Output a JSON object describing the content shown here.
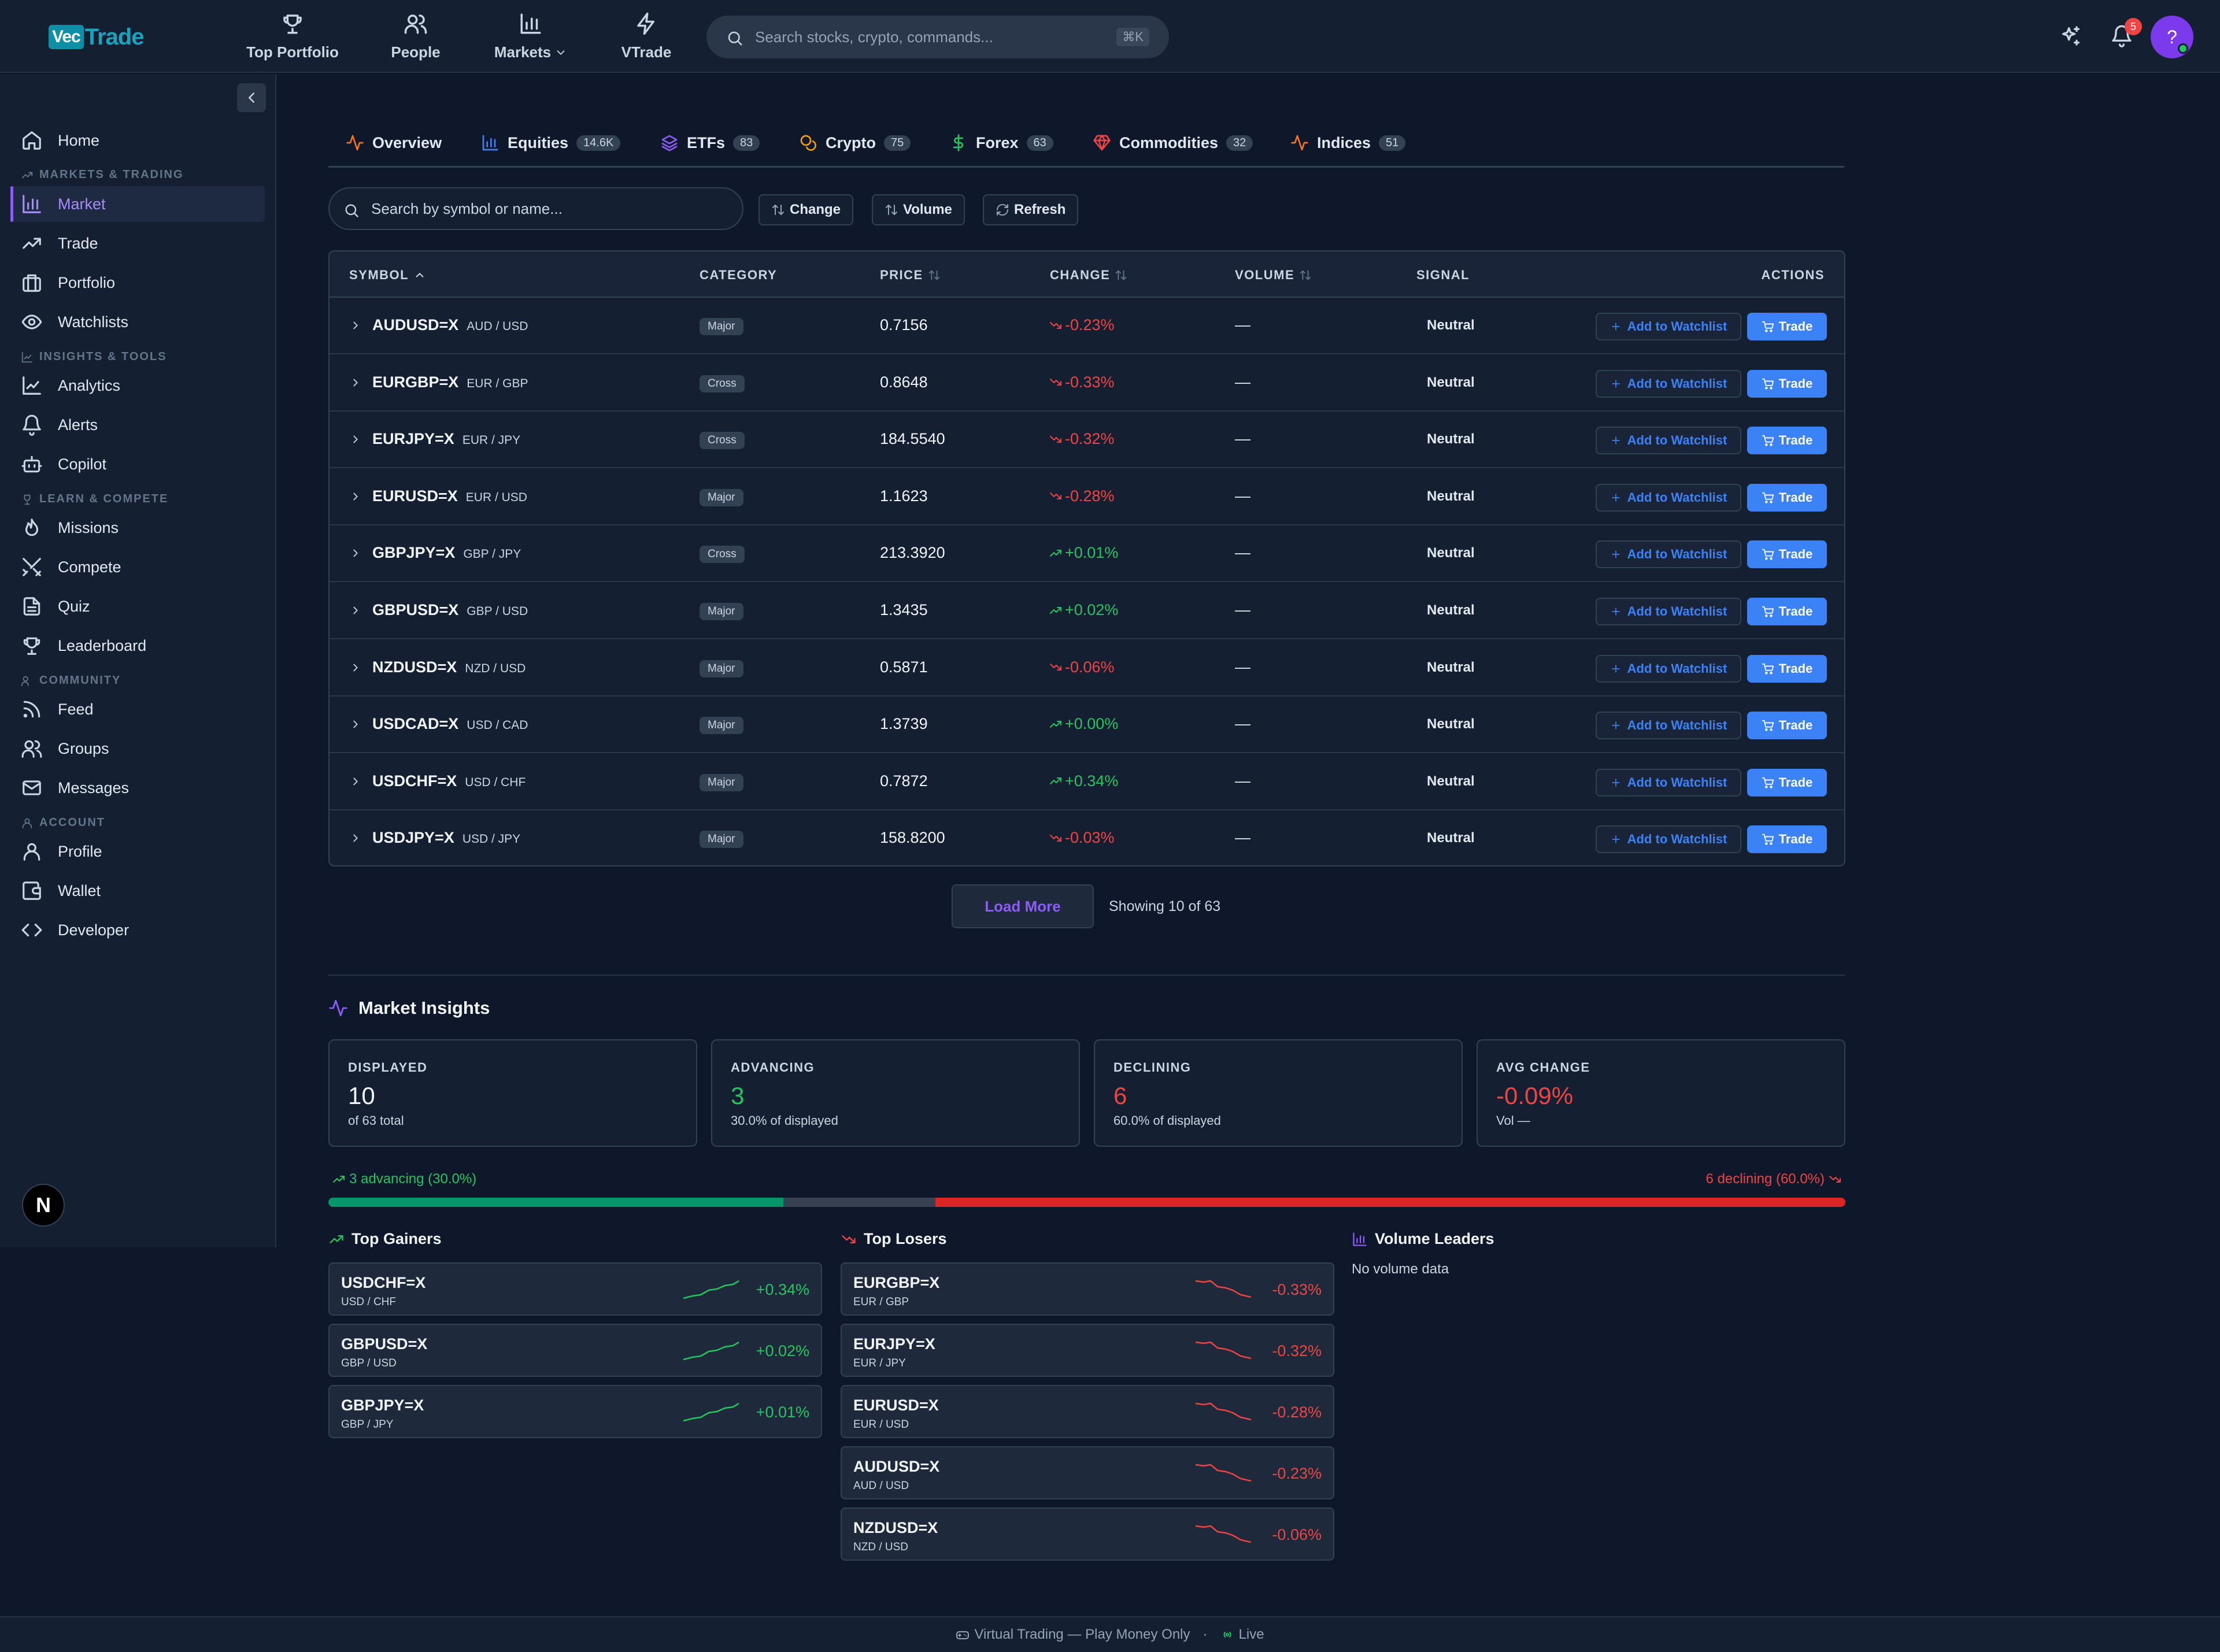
{
  "app": {
    "logo_vec": "Vec",
    "logo_trade": "Trade"
  },
  "topnav": [
    {
      "label": "Top Portfolio",
      "icon": "trophy-icon"
    },
    {
      "label": "People",
      "icon": "users-icon"
    },
    {
      "label": "Markets",
      "icon": "bar-chart-icon"
    },
    {
      "label": "VTrade",
      "icon": "lightning-icon"
    }
  ],
  "search": {
    "placeholder": "Search stocks, crypto, commands...",
    "shortcut": "⌘K"
  },
  "notifications": {
    "count": "5"
  },
  "user": {
    "avatar_label": "?"
  },
  "sidebar": {
    "home": "Home",
    "sec_markets": "MARKETS & TRADING",
    "market": "Market",
    "trade": "Trade",
    "portfolio": "Portfolio",
    "watchlists": "Watchlists",
    "sec_insights": "INSIGHTS & TOOLS",
    "analytics": "Analytics",
    "alerts": "Alerts",
    "copilot": "Copilot",
    "sec_learn": "LEARN & COMPETE",
    "missions": "Missions",
    "compete": "Compete",
    "quiz": "Quiz",
    "leaderboard": "Leaderboard",
    "sec_community": "COMMUNITY",
    "feed": "Feed",
    "groups": "Groups",
    "messages": "Messages",
    "sec_account": "ACCOUNT",
    "profile": "Profile",
    "wallet": "Wallet",
    "developer": "Developer",
    "badge": "N"
  },
  "tabs": [
    {
      "label": "Overview",
      "count": ""
    },
    {
      "label": "Equities",
      "count": "14.6K"
    },
    {
      "label": "ETFs",
      "count": "83"
    },
    {
      "label": "Crypto",
      "count": "75"
    },
    {
      "label": "Forex",
      "count": "63"
    },
    {
      "label": "Commodities",
      "count": "32"
    },
    {
      "label": "Indices",
      "count": "51"
    }
  ],
  "filter": {
    "placeholder": "Search by symbol or name...",
    "change": "Change",
    "volume": "Volume",
    "refresh": "Refresh"
  },
  "table": {
    "headers": {
      "symbol": "SYMBOL",
      "category": "CATEGORY",
      "price": "PRICE",
      "change": "CHANGE",
      "volume": "VOLUME",
      "signal": "SIGNAL",
      "actions": "ACTIONS"
    },
    "watch_label": "Add to Watchlist",
    "trade_label": "Trade",
    "rows": [
      {
        "symbol": "AUDUSD=X",
        "pair": "AUD / USD",
        "category": "Major",
        "price": "0.7156",
        "change": "-0.23%",
        "dir": "down",
        "volume": "—",
        "signal": "Neutral"
      },
      {
        "symbol": "EURGBP=X",
        "pair": "EUR / GBP",
        "category": "Cross",
        "price": "0.8648",
        "change": "-0.33%",
        "dir": "down",
        "volume": "—",
        "signal": "Neutral"
      },
      {
        "symbol": "EURJPY=X",
        "pair": "EUR / JPY",
        "category": "Cross",
        "price": "184.5540",
        "change": "-0.32%",
        "dir": "down",
        "volume": "—",
        "signal": "Neutral"
      },
      {
        "symbol": "EURUSD=X",
        "pair": "EUR / USD",
        "category": "Major",
        "price": "1.1623",
        "change": "-0.28%",
        "dir": "down",
        "volume": "—",
        "signal": "Neutral"
      },
      {
        "symbol": "GBPJPY=X",
        "pair": "GBP / JPY",
        "category": "Cross",
        "price": "213.3920",
        "change": "+0.01%",
        "dir": "up",
        "volume": "—",
        "signal": "Neutral"
      },
      {
        "symbol": "GBPUSD=X",
        "pair": "GBP / USD",
        "category": "Major",
        "price": "1.3435",
        "change": "+0.02%",
        "dir": "up",
        "volume": "—",
        "signal": "Neutral"
      },
      {
        "symbol": "NZDUSD=X",
        "pair": "NZD / USD",
        "category": "Major",
        "price": "0.5871",
        "change": "-0.06%",
        "dir": "down",
        "volume": "—",
        "signal": "Neutral"
      },
      {
        "symbol": "USDCAD=X",
        "pair": "USD / CAD",
        "category": "Major",
        "price": "1.3739",
        "change": "+0.00%",
        "dir": "up",
        "volume": "—",
        "signal": "Neutral"
      },
      {
        "symbol": "USDCHF=X",
        "pair": "USD / CHF",
        "category": "Major",
        "price": "0.7872",
        "change": "+0.34%",
        "dir": "up",
        "volume": "—",
        "signal": "Neutral"
      },
      {
        "symbol": "USDJPY=X",
        "pair": "USD / JPY",
        "category": "Major",
        "price": "158.8200",
        "change": "-0.03%",
        "dir": "down",
        "volume": "—",
        "signal": "Neutral"
      }
    ]
  },
  "pagination": {
    "load_more": "Load More",
    "showing": "Showing 10 of 63"
  },
  "insights": {
    "title": "Market Insights",
    "cards": [
      {
        "label": "DISPLAYED",
        "value": "10",
        "sub": "of 63 total",
        "tone": "neutral"
      },
      {
        "label": "ADVANCING",
        "value": "3",
        "sub": "30.0% of displayed",
        "tone": "up"
      },
      {
        "label": "DECLINING",
        "value": "6",
        "sub": "60.0% of displayed",
        "tone": "down"
      },
      {
        "label": "AVG CHANGE",
        "value": "-0.09%",
        "sub": "Vol —",
        "tone": "down"
      }
    ],
    "advancing_text": "3 advancing (30.0%)",
    "declining_text": "6 declining (60.0%)",
    "advancing_fraction": 0.3,
    "declining_fraction": 0.6
  },
  "movers": {
    "gainers_title": "Top Gainers",
    "losers_title": "Top Losers",
    "volume_title": "Volume Leaders",
    "no_volume": "No volume data",
    "gainers": [
      {
        "symbol": "USDCHF=X",
        "pair": "USD / CHF",
        "change": "+0.34%"
      },
      {
        "symbol": "GBPUSD=X",
        "pair": "GBP / USD",
        "change": "+0.02%"
      },
      {
        "symbol": "GBPJPY=X",
        "pair": "GBP / JPY",
        "change": "+0.01%"
      }
    ],
    "losers": [
      {
        "symbol": "EURGBP=X",
        "pair": "EUR / GBP",
        "change": "-0.33%"
      },
      {
        "symbol": "EURJPY=X",
        "pair": "EUR / JPY",
        "change": "-0.32%"
      },
      {
        "symbol": "EURUSD=X",
        "pair": "EUR / USD",
        "change": "-0.28%"
      },
      {
        "symbol": "AUDUSD=X",
        "pair": "AUD / USD",
        "change": "-0.23%"
      },
      {
        "symbol": "NZDUSD=X",
        "pair": "NZD / USD",
        "change": "-0.06%"
      }
    ]
  },
  "footer": {
    "text": "Virtual Trading — Play Money Only",
    "sep": "·",
    "live": "Live"
  },
  "colors": {
    "accent": "#8b5cf6",
    "up": "#22c55e",
    "down": "#ef4444",
    "primary": "#3b82f6"
  }
}
